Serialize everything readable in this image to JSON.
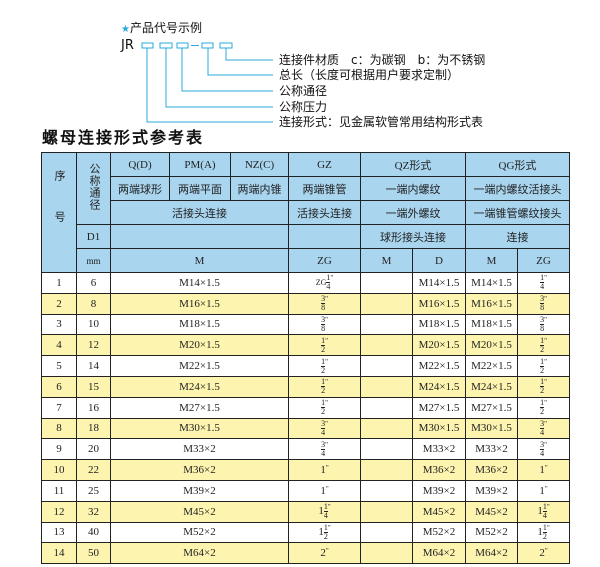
{
  "diagram": {
    "heading_icon": "star-icon",
    "heading": "产品代号示例",
    "code_prefix": "JR",
    "code_separator": "-",
    "accent_color": "#2aa8d8",
    "labels": [
      "连接件材质　c：为碳钢　b：为不锈钢",
      "总长（长度可根据用户要求定制）",
      "公称通径",
      "公称压力",
      "连接形式：见金属软管常用结构形式表"
    ]
  },
  "table_title": "螺母连接形式参考表",
  "header": {
    "seq": "序号",
    "nominal": "公称通径",
    "d1": "D1",
    "mm": "mm",
    "r1": [
      "Q(D)",
      "PM(A)",
      "NZ(C)",
      "GZ",
      "QZ形式",
      "QG形式"
    ],
    "r2": [
      "两端球形",
      "两端平面",
      "两端内锥",
      "两端锥管",
      "一端内螺纹",
      "一端内螺纹活接头"
    ],
    "r3": [
      "活接头连接",
      "活接头连接",
      "一端外螺纹",
      "一端锥管螺纹接头"
    ],
    "r4": [
      "球形接头连接",
      "连接"
    ],
    "r5": [
      "M",
      "ZG",
      "M",
      "D",
      "M",
      "ZG"
    ]
  },
  "colors": {
    "header_bg": "#a9d5ef",
    "highlight_row": "#fdf4b0"
  },
  "rows": [
    {
      "no": "1",
      "d1": "6",
      "m": "M14×1.5",
      "zg": {
        "prefix": "ZG",
        "whole": "",
        "num": "1",
        "den": "4"
      },
      "qz_m": "",
      "qz_d": "M14×1.5",
      "qg_m": "M14×1.5",
      "qg_zg": {
        "whole": "",
        "num": "1",
        "den": "4"
      }
    },
    {
      "no": "2",
      "d1": "8",
      "m": "M16×1.5",
      "zg": {
        "whole": "",
        "num": "3",
        "den": "8"
      },
      "qz_m": "",
      "qz_d": "M16×1.5",
      "qg_m": "M16×1.5",
      "qg_zg": {
        "whole": "",
        "num": "3",
        "den": "8"
      }
    },
    {
      "no": "3",
      "d1": "10",
      "m": "M18×1.5",
      "zg": {
        "whole": "",
        "num": "3",
        "den": "8"
      },
      "qz_m": "",
      "qz_d": "M18×1.5",
      "qg_m": "M18×1.5",
      "qg_zg": {
        "whole": "",
        "num": "3",
        "den": "8"
      }
    },
    {
      "no": "4",
      "d1": "12",
      "m": "M20×1.5",
      "zg": {
        "whole": "",
        "num": "1",
        "den": "2"
      },
      "qz_m": "",
      "qz_d": "M20×1.5",
      "qg_m": "M20×1.5",
      "qg_zg": {
        "whole": "",
        "num": "1",
        "den": "2"
      }
    },
    {
      "no": "5",
      "d1": "14",
      "m": "M22×1.5",
      "zg": {
        "whole": "",
        "num": "1",
        "den": "2"
      },
      "qz_m": "",
      "qz_d": "M22×1.5",
      "qg_m": "M22×1.5",
      "qg_zg": {
        "whole": "",
        "num": "1",
        "den": "2"
      }
    },
    {
      "no": "6",
      "d1": "15",
      "m": "M24×1.5",
      "zg": {
        "whole": "",
        "num": "1",
        "den": "2"
      },
      "qz_m": "",
      "qz_d": "M24×1.5",
      "qg_m": "M24×1.5",
      "qg_zg": {
        "whole": "",
        "num": "1",
        "den": "2"
      }
    },
    {
      "no": "7",
      "d1": "16",
      "m": "M27×1.5",
      "zg": {
        "whole": "",
        "num": "1",
        "den": "2"
      },
      "qz_m": "",
      "qz_d": "M27×1.5",
      "qg_m": "M27×1.5",
      "qg_zg": {
        "whole": "",
        "num": "1",
        "den": "2"
      }
    },
    {
      "no": "8",
      "d1": "18",
      "m": "M30×1.5",
      "zg": {
        "whole": "",
        "num": "3",
        "den": "4"
      },
      "qz_m": "",
      "qz_d": "M30×1.5",
      "qg_m": "M30×1.5",
      "qg_zg": {
        "whole": "",
        "num": "3",
        "den": "4"
      }
    },
    {
      "no": "9",
      "d1": "20",
      "m": "M33×2",
      "zg": {
        "whole": "",
        "num": "3",
        "den": "4"
      },
      "qz_m": "",
      "qz_d": "M33×2",
      "qg_m": "M33×2",
      "qg_zg": {
        "whole": "",
        "num": "3",
        "den": "4"
      }
    },
    {
      "no": "10",
      "d1": "22",
      "m": "M36×2",
      "zg": {
        "whole": "1"
      },
      "qz_m": "",
      "qz_d": "M36×2",
      "qg_m": "M36×2",
      "qg_zg": {
        "whole": "1"
      }
    },
    {
      "no": "11",
      "d1": "25",
      "m": "M39×2",
      "zg": {
        "whole": "1"
      },
      "qz_m": "",
      "qz_d": "M39×2",
      "qg_m": "M39×2",
      "qg_zg": {
        "whole": "1"
      }
    },
    {
      "no": "12",
      "d1": "32",
      "m": "M45×2",
      "zg": {
        "whole": "1",
        "num": "1",
        "den": "4"
      },
      "qz_m": "",
      "qz_d": "M45×2",
      "qg_m": "M45×2",
      "qg_zg": {
        "whole": "1",
        "num": "1",
        "den": "4"
      }
    },
    {
      "no": "13",
      "d1": "40",
      "m": "M52×2",
      "zg": {
        "whole": "1",
        "num": "1",
        "den": "2"
      },
      "qz_m": "",
      "qz_d": "M52×2",
      "qg_m": "M52×2",
      "qg_zg": {
        "whole": "1",
        "num": "1",
        "den": "2"
      }
    },
    {
      "no": "14",
      "d1": "50",
      "m": "M64×2",
      "zg": {
        "whole": "2"
      },
      "qz_m": "",
      "qz_d": "M64×2",
      "qg_m": "M64×2",
      "qg_zg": {
        "whole": "2"
      }
    }
  ]
}
